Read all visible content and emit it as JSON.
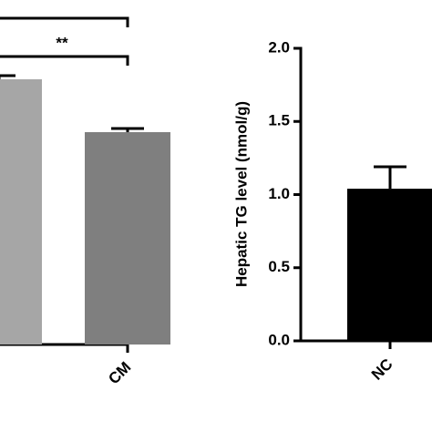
{
  "chart_data": [
    {
      "type": "bar",
      "categories": [
        null,
        "CM"
      ],
      "values": [
        291,
        233
      ],
      "errors": [
        4,
        4
      ],
      "colors": [
        "#a6a6a6",
        "#7f7f7f"
      ],
      "ylim": [
        0,
        300
      ],
      "annotation": "**"
    },
    {
      "type": "bar",
      "y_label": "Hepatic TG level (nmol/g)",
      "categories": [
        "NC"
      ],
      "values": [
        1.04
      ],
      "errors": [
        0.15
      ],
      "colors": [
        "#000000"
      ],
      "ylim": [
        0,
        2.0
      ],
      "yticks": [
        {
          "value": 0,
          "label": "0.0"
        },
        {
          "value": 0.5,
          "label": "0.5"
        },
        {
          "value": 1,
          "label": "1.0"
        },
        {
          "value": 1.5,
          "label": "1.5"
        },
        {
          "value": 2,
          "label": "2.0"
        }
      ]
    }
  ]
}
